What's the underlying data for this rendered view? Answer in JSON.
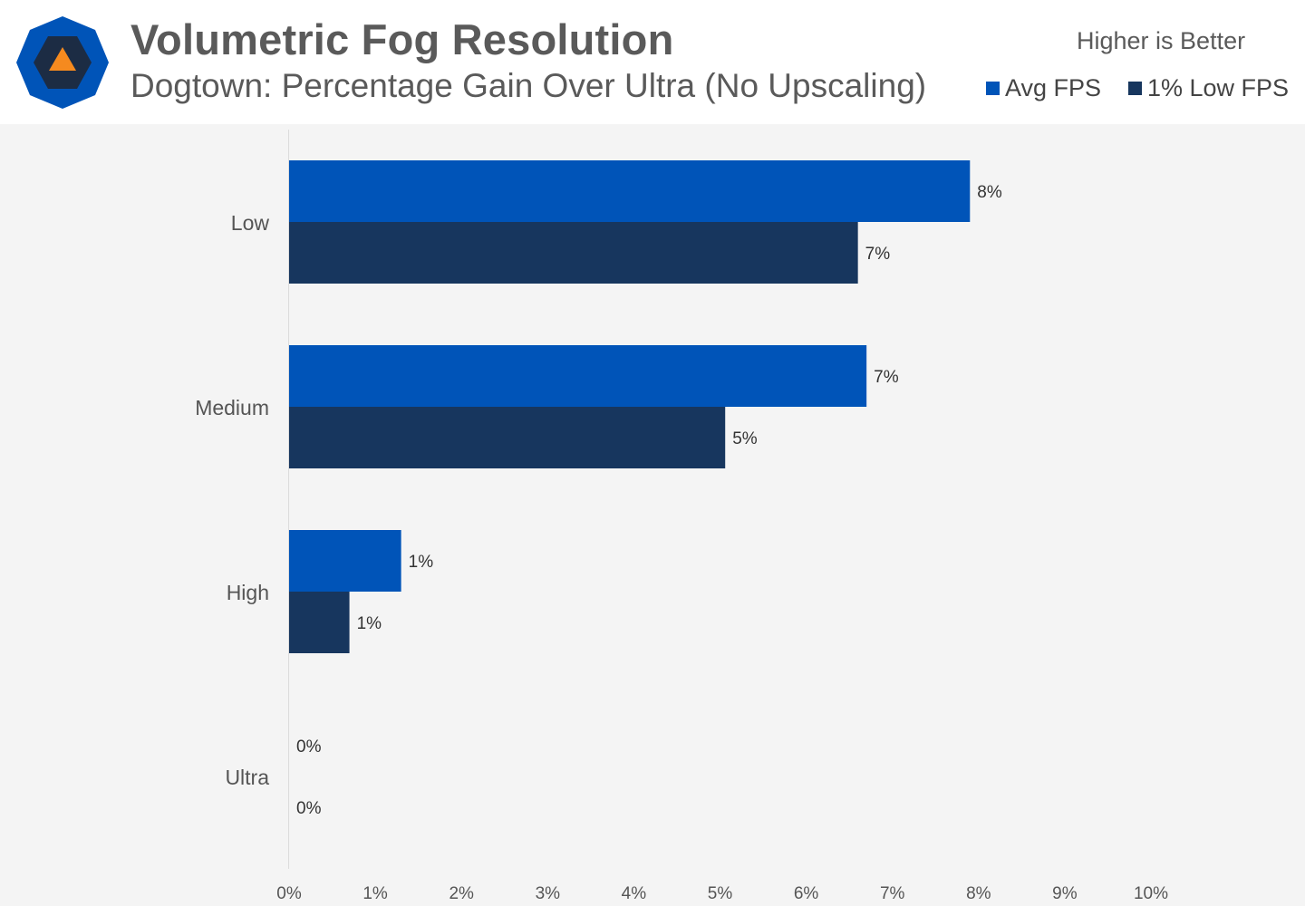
{
  "header": {
    "title": "Volumetric Fog Resolution",
    "subtitle": "Dogtown: Percentage Gain Over Ultra (No Upscaling)",
    "note": "Higher is Better",
    "logo_icon": "hardware-unboxed-logo-icon"
  },
  "colors": {
    "avg": "#0054b8",
    "low": "#17365e",
    "logo_outer": "#0054b8",
    "logo_inner": "#1c2c44",
    "logo_triangle": "#f58a1f"
  },
  "chart_data": {
    "type": "bar",
    "orientation": "horizontal",
    "categories": [
      "Low",
      "Medium",
      "High",
      "Ultra"
    ],
    "series": [
      {
        "name": "Avg FPS",
        "values": [
          7.9,
          6.7,
          1.3,
          0
        ],
        "labels": [
          "8%",
          "7%",
          "1%",
          "0%"
        ]
      },
      {
        "name": "1% Low FPS",
        "values": [
          6.6,
          5.06,
          0.7,
          0
        ],
        "labels": [
          "7%",
          "5%",
          "1%",
          "0%"
        ]
      }
    ],
    "xlim": [
      0,
      10
    ],
    "xticks": [
      "0%",
      "1%",
      "2%",
      "3%",
      "4%",
      "5%",
      "6%",
      "7%",
      "8%",
      "9%",
      "10%"
    ],
    "grid": false,
    "legend_position": "top-right"
  }
}
